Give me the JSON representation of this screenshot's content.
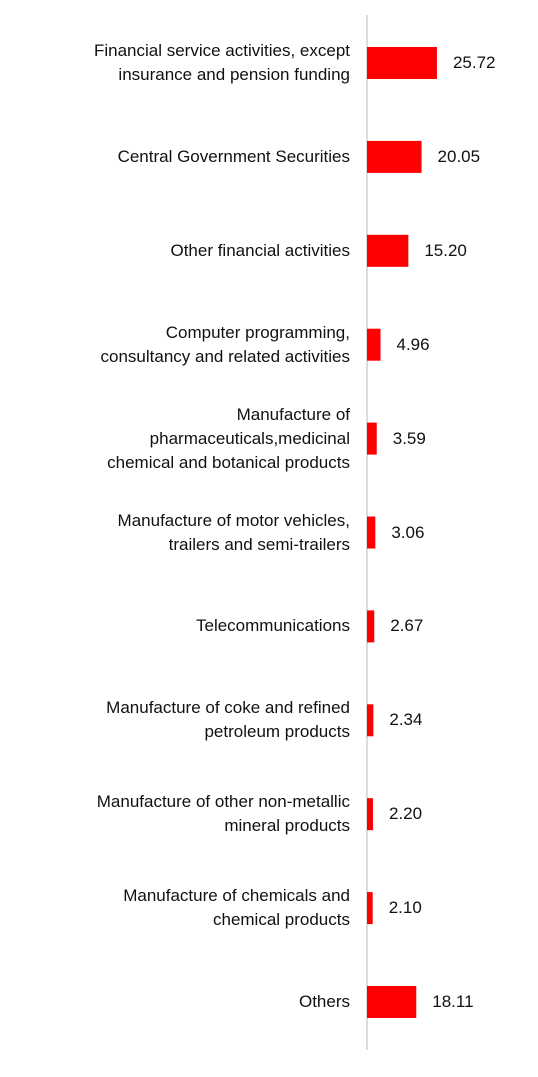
{
  "chart_data": {
    "type": "hbar",
    "categories": [
      "Financial service activities, except\ninsurance and pension funding",
      "Central Government Securities",
      "Other financial activities",
      "Computer programming,\nconsultancy and related activities",
      "Manufacture of\npharmaceuticals,medicinal\nchemical and botanical products",
      "Manufacture of motor vehicles,\ntrailers and semi-trailers",
      "Telecommunications",
      "Manufacture of coke and refined\npetroleum products",
      "Manufacture of other non-metallic\nmineral products",
      "Manufacture of chemicals and\nchemical products",
      "Others"
    ],
    "values": [
      25.72,
      20.05,
      15.2,
      4.96,
      3.59,
      3.06,
      2.67,
      2.34,
      2.2,
      2.1,
      18.11
    ],
    "value_labels": [
      "25.72",
      "20.05",
      "15.20",
      "4.96",
      "3.59",
      "3.06",
      "2.67",
      "2.34",
      "2.20",
      "2.10",
      "18.11"
    ],
    "color": "#ff0000"
  }
}
